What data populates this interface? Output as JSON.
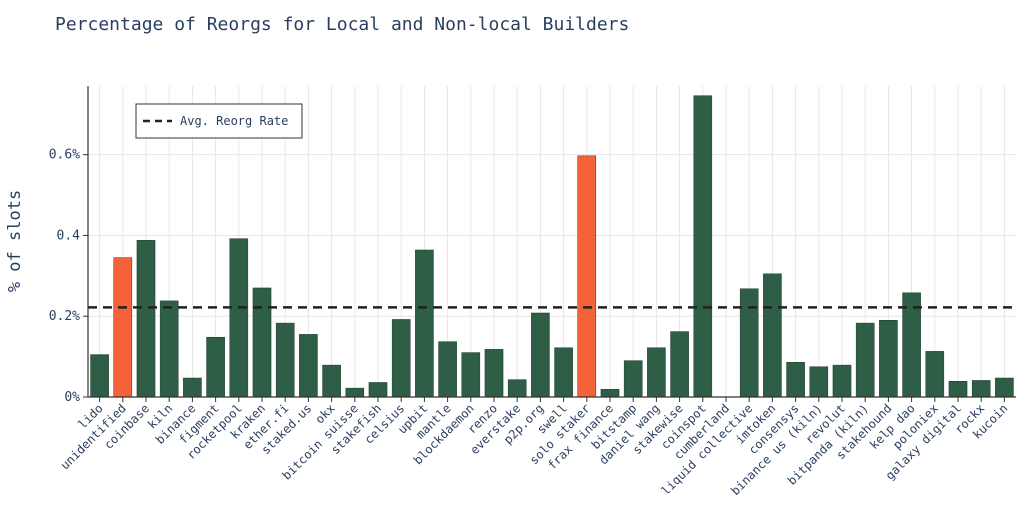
{
  "chart_data": {
    "type": "bar",
    "title": "Percentage of Reorgs for Local and Non-local Builders",
    "ylabel": "% of slots",
    "xlabel": "",
    "ylim": [
      0,
      0.77
    ],
    "yticks": [
      {
        "value": 0,
        "label": "0%"
      },
      {
        "value": 0.2,
        "label": "0.2%"
      },
      {
        "value": 0.4,
        "label": "0.4"
      },
      {
        "value": 0.6,
        "label": "0.6%"
      }
    ],
    "grid": true,
    "legend": {
      "placement": "top-left",
      "entries": [
        "Avg. Reorg Rate"
      ]
    },
    "avg_line": 0.222,
    "colors": {
      "default": "#2e5e46",
      "highlight": "#f4623a",
      "avg_line": "#222222",
      "grid": "#e6e6e6",
      "text": "#2a3f5f"
    },
    "categories": [
      "lido",
      "unidentified",
      "coinbase",
      "kiln",
      "binance",
      "figment",
      "rocketpool",
      "kraken",
      "ether.fi",
      "staked.us",
      "okx",
      "bitcoin suisse",
      "stakefish",
      "celsius",
      "upbit",
      "mantle",
      "blockdaemon",
      "renzo",
      "everstake",
      "p2p.org",
      "swell",
      "solo staker",
      "frax finance",
      "bitstamp",
      "daniel wang",
      "stakewise",
      "coinspot",
      "cumberland",
      "liquid collective",
      "imtoken",
      "consensys",
      "binance us (kiln)",
      "revolut",
      "bitpanda (kiln)",
      "stakehound",
      "kelp dao",
      "poloniex",
      "galaxy digital",
      "rockx",
      "kucoin"
    ],
    "values": [
      0.105,
      0.345,
      0.388,
      0.238,
      0.047,
      0.148,
      0.392,
      0.27,
      0.183,
      0.155,
      0.079,
      0.022,
      0.036,
      0.192,
      0.364,
      0.137,
      0.11,
      0.118,
      0.043,
      0.208,
      0.122,
      0.597,
      0.019,
      0.09,
      0.122,
      0.162,
      0.746,
      0.0,
      0.268,
      0.305,
      0.086,
      0.075,
      0.079,
      0.183,
      0.19,
      0.258,
      0.113,
      0.039,
      0.041,
      0.047
    ],
    "highlighted": [
      "unidentified",
      "solo staker"
    ]
  }
}
